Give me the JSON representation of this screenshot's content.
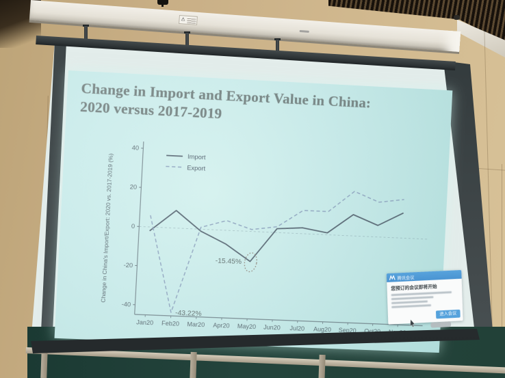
{
  "slide": {
    "title_line1": "Change in Import and Export Value in China:",
    "title_line2": "2020 versus 2017-2019"
  },
  "chart_data": {
    "type": "line",
    "title": "Change in Import and Export Value in China: 2020 versus 2017-2019",
    "ylabel": "Change in China's Import/Export: 2020 vs. 2017-2019 (%)",
    "xlabel": "",
    "categories": [
      "Jan20",
      "Feb20",
      "Mar20",
      "Apr20",
      "May20",
      "Jun20",
      "Jul20",
      "Aug20",
      "Sep20",
      "Oct20",
      "Nov20"
    ],
    "series": [
      {
        "name": "Import",
        "line_style": "solid",
        "color": "#54626f",
        "values": [
          -2,
          9,
          -1,
          -7,
          -15.45,
          2,
          3,
          1,
          11,
          6,
          13
        ]
      },
      {
        "name": "Export",
        "line_style": "dashed",
        "color": "#8ea3bf",
        "values": [
          6,
          -43.22,
          1,
          5,
          1,
          3,
          12,
          12,
          23,
          18,
          20
        ]
      }
    ],
    "ylim": [
      -45,
      42
    ],
    "yticks": [
      40,
      20,
      0,
      -20,
      -40
    ],
    "legend_position": "top-left",
    "grid": "zero-line-only",
    "annotations": [
      {
        "text": "-15.45%",
        "category": "May20",
        "value": -15.45,
        "series": "Import",
        "marker": "dotted-ellipse"
      },
      {
        "text": "-43.22%",
        "category": "Feb20",
        "value": -43.22,
        "series": "Export",
        "marker": "none"
      }
    ]
  },
  "popup": {
    "app_name": "腾讯会议",
    "headline": "您预订的会议即将开始",
    "primary_button": "进入会议",
    "logo_icon": "tencent-meeting-logo"
  },
  "icons": {
    "warning_icon": "⚠",
    "cursor_icon": "arrow-pointer"
  },
  "colors": {
    "slide_bg": "#c9eceb",
    "title_text": "#6f7d7c",
    "axis_text": "#57666e",
    "import_line": "#54626f",
    "export_line": "#8ea3bf",
    "popup_header_blue": "#4a94d2",
    "wall_beige": "#c9af86",
    "chalkboard_green": "#24443c"
  }
}
